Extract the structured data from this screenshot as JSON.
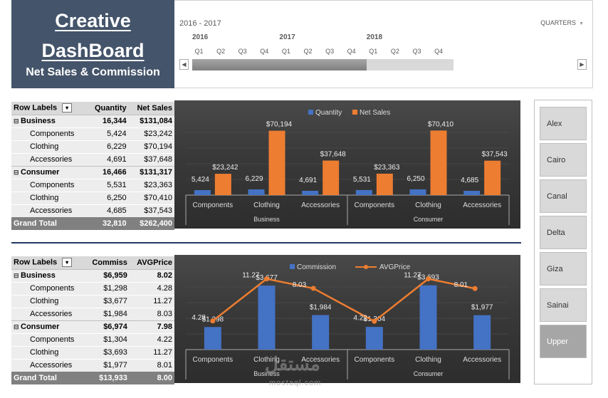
{
  "title": {
    "line1": "Creative",
    "line2": "DashBoard",
    "line3": "Net Sales & Commission"
  },
  "timeline": {
    "range_label": "2016 - 2017",
    "level_label": "QUARTERS",
    "years": [
      "2016",
      "2017",
      "2018"
    ],
    "quarters": [
      "Q1",
      "Q2",
      "Q3",
      "Q4",
      "Q1",
      "Q2",
      "Q3",
      "Q4",
      "Q1",
      "Q2",
      "Q3",
      "Q4"
    ],
    "selected_quarters": 8
  },
  "pivot1": {
    "headers": [
      "Row Labels",
      "Quantity",
      "Net Sales"
    ],
    "groups": [
      {
        "label": "Business",
        "quantity": "16,344",
        "value": "$131,084",
        "items": [
          {
            "label": "Components",
            "quantity": "5,424",
            "value": "$23,242"
          },
          {
            "label": "Clothing",
            "quantity": "6,229",
            "value": "$70,194"
          },
          {
            "label": "Accessories",
            "quantity": "4,691",
            "value": "$37,648"
          }
        ]
      },
      {
        "label": "Consumer",
        "quantity": "16,466",
        "value": "$131,317",
        "items": [
          {
            "label": "Components",
            "quantity": "5,531",
            "value": "$23,363"
          },
          {
            "label": "Clothing",
            "quantity": "6,250",
            "value": "$70,410"
          },
          {
            "label": "Accessories",
            "quantity": "4,685",
            "value": "$37,543"
          }
        ]
      }
    ],
    "total": {
      "label": "Grand Total",
      "quantity": "32,810",
      "value": "$262,400"
    }
  },
  "pivot2": {
    "headers": [
      "Row Labels",
      "Commiss",
      "AVGPrice"
    ],
    "groups": [
      {
        "label": "Business",
        "quantity": "$6,959",
        "value": "8.02",
        "items": [
          {
            "label": "Components",
            "quantity": "$1,298",
            "value": "4.28"
          },
          {
            "label": "Clothing",
            "quantity": "$3,677",
            "value": "11.27"
          },
          {
            "label": "Accessories",
            "quantity": "$1,984",
            "value": "8.03"
          }
        ]
      },
      {
        "label": "Consumer",
        "quantity": "$6,974",
        "value": "7.98",
        "items": [
          {
            "label": "Components",
            "quantity": "$1,304",
            "value": "4.22"
          },
          {
            "label": "Clothing",
            "quantity": "$3,693",
            "value": "11.27"
          },
          {
            "label": "Accessories",
            "quantity": "$1,977",
            "value": "8.01"
          }
        ]
      }
    ],
    "total": {
      "label": "Grand Total",
      "quantity": "$13,933",
      "value": "8.00"
    }
  },
  "chart_data": [
    {
      "type": "bar",
      "title": "",
      "categories": [
        "Components",
        "Clothing",
        "Accessories",
        "Components",
        "Clothing",
        "Accessories"
      ],
      "groups": [
        "Business",
        "Consumer"
      ],
      "series": [
        {
          "name": "Quantity",
          "values": [
            5424,
            6229,
            4691,
            5531,
            6250,
            4685
          ],
          "labels": [
            "5,424",
            "6,229",
            "4,691",
            "5,531",
            "6,250",
            "4,685"
          ],
          "color": "#4472c4"
        },
        {
          "name": "Net Sales",
          "values": [
            23242,
            70194,
            37648,
            23363,
            70410,
            37543
          ],
          "labels": [
            "$23,242",
            "$70,194",
            "$37,648",
            "$23,363",
            "$70,410",
            "$37,543"
          ],
          "color": "#ed7d31"
        }
      ],
      "ylim": [
        0,
        80000
      ],
      "legend": "top"
    },
    {
      "type": "bar",
      "title": "",
      "categories": [
        "Components",
        "Clothing",
        "Accessories",
        "Components",
        "Clothing",
        "Accessories"
      ],
      "groups": [
        "Business",
        "Consumer"
      ],
      "series": [
        {
          "name": "Commission",
          "values": [
            1298,
            3677,
            1984,
            1304,
            3693,
            1977
          ],
          "labels": [
            "$1,298",
            "$3,677",
            "$1,984",
            "$1,304",
            "$3,693",
            "$1,977"
          ],
          "color": "#4472c4",
          "kind": "bar"
        },
        {
          "name": "AVGPrice",
          "values": [
            4.28,
            11.27,
            8.03,
            4.22,
            11.27,
            8.01
          ],
          "labels": [
            "4.28",
            "11.27",
            "8.03",
            "4.22",
            "11.27",
            "8.01"
          ],
          "color": "#ed7d31",
          "kind": "line"
        }
      ],
      "legend": "top"
    }
  ],
  "slicer": {
    "items": [
      "Alex",
      "Cairo",
      "Canal",
      "Delta",
      "Giza",
      "Sainai",
      "Upper"
    ]
  },
  "watermark": {
    "text": "مستقل",
    "url": "mostaql.com"
  }
}
